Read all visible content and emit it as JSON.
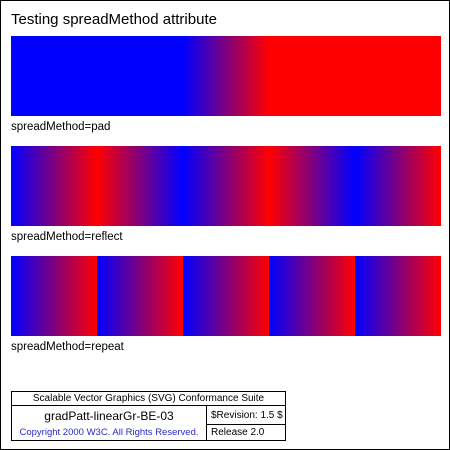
{
  "title": "Testing spreadMethod attribute",
  "colors": {
    "start": "#0000ff",
    "end": "#ff0000"
  },
  "samples": [
    {
      "caption": "spreadMethod=pad"
    },
    {
      "caption": "spreadMethod=reflect"
    },
    {
      "caption": "spreadMethod=repeat"
    }
  ],
  "footer": {
    "suite": "Scalable Vector Graphics (SVG) Conformance Suite",
    "test_name": "gradPatt-linearGr-BE-03",
    "revision": "$Revision: 1.5 $",
    "copyright": "Copyright 2000 W3C. All Rights Reserved.",
    "release": "Release 2.0"
  }
}
